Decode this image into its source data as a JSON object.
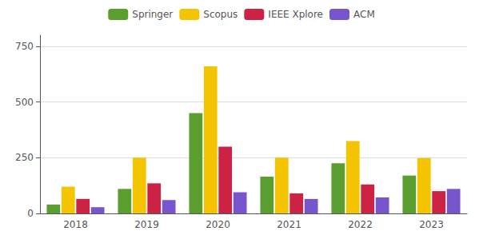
{
  "chart_data": {
    "type": "bar",
    "categories": [
      "2018",
      "2019",
      "2020",
      "2021",
      "2022",
      "2023"
    ],
    "series": [
      {
        "name": "Springer",
        "color": "#5a9e2f",
        "values": [
          40,
          110,
          450,
          165,
          225,
          170
        ]
      },
      {
        "name": "Scopus",
        "color": "#f5c400",
        "values": [
          120,
          250,
          660,
          250,
          325,
          248
        ]
      },
      {
        "name": "IEEE Xplore",
        "color": "#cc2244",
        "values": [
          65,
          135,
          300,
          90,
          130,
          100
        ]
      },
      {
        "name": "ACM",
        "color": "#7755cc",
        "values": [
          28,
          60,
          95,
          65,
          72,
          110
        ]
      }
    ],
    "ylim": [
      0,
      800
    ],
    "yticks": [
      0,
      250,
      500,
      750
    ],
    "grid": true,
    "legend": "top"
  }
}
